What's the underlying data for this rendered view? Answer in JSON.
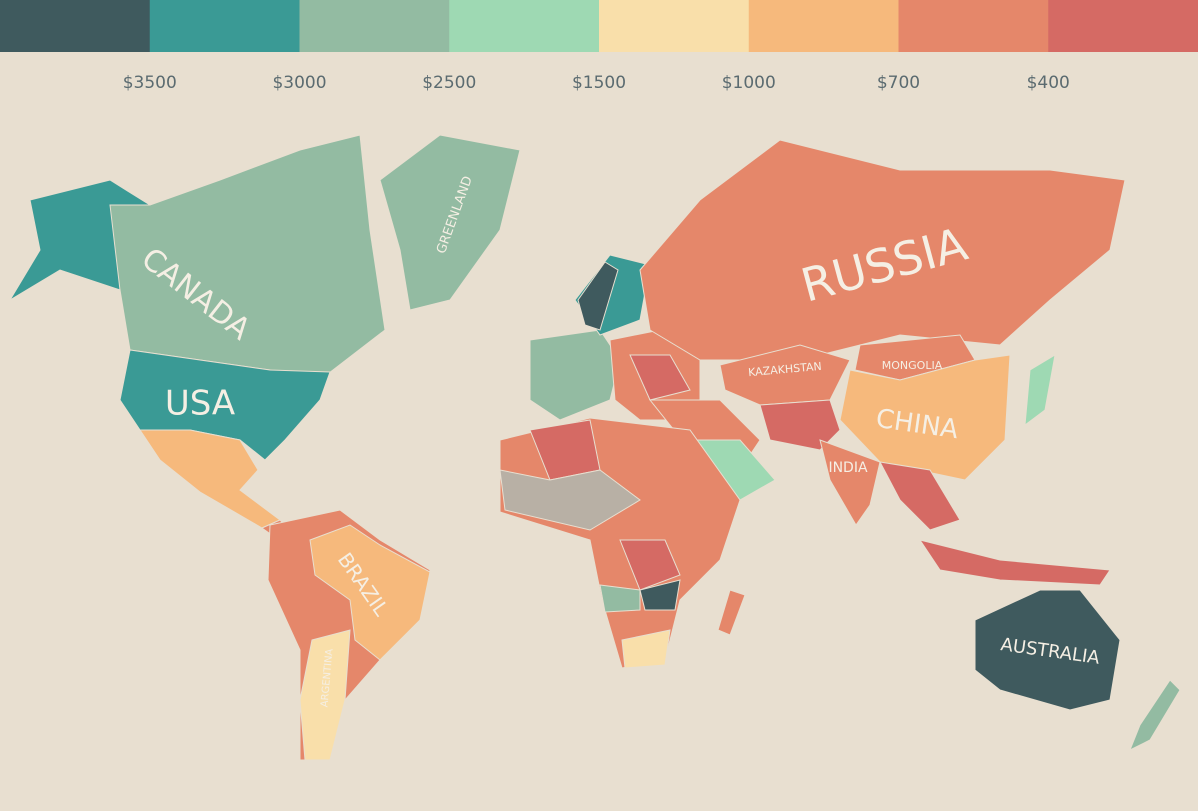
{
  "legend": {
    "colors": [
      "#3f5a5e",
      "#3a9a95",
      "#93bba2",
      "#9ed9b3",
      "#f9dfaa",
      "#f6b97c",
      "#e5876a",
      "#d56a64"
    ],
    "labels": [
      "$3500",
      "$3000",
      "$2500",
      "$1500",
      "$1000",
      "$700",
      "$400"
    ]
  },
  "map_labels": [
    "CANADA",
    "USA",
    "GREENLAND",
    "RUSSIA",
    "KAZAKHSTAN",
    "MONGOLIA",
    "CHINA",
    "INDIA",
    "BRAZIL",
    "ARGENTINA",
    "AUSTRALIA"
  ]
}
